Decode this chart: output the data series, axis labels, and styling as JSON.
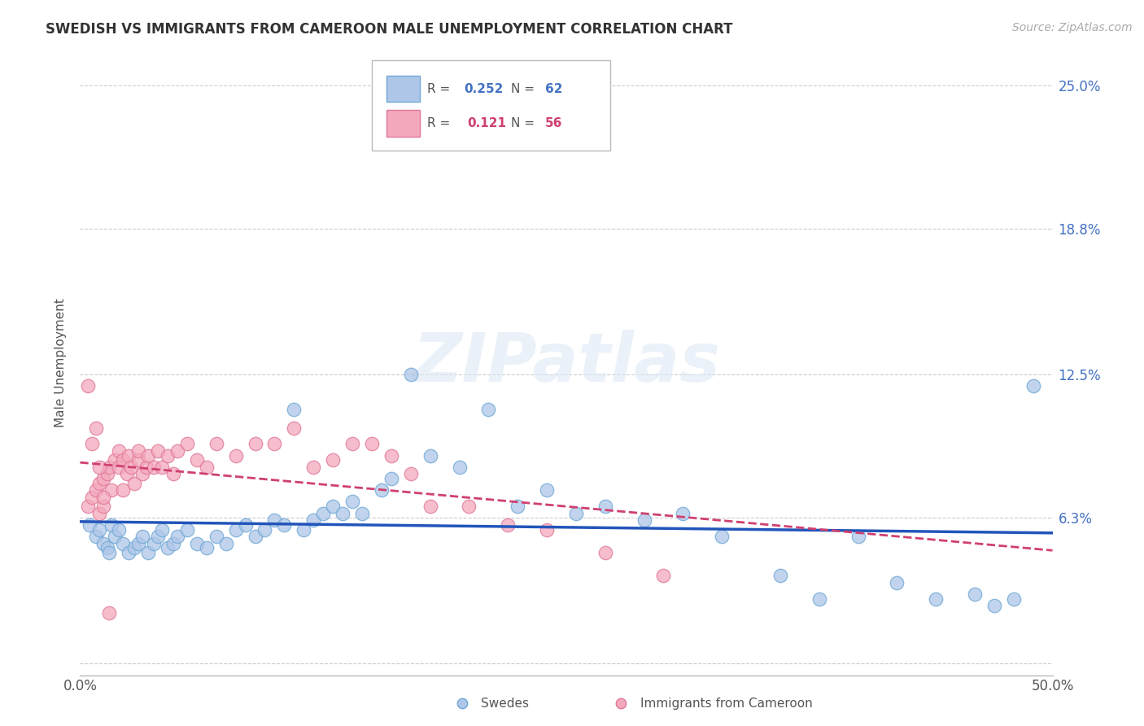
{
  "title": "SWEDISH VS IMMIGRANTS FROM CAMEROON MALE UNEMPLOYMENT CORRELATION CHART",
  "source": "Source: ZipAtlas.com",
  "ylabel": "Male Unemployment",
  "yticks": [
    0.0,
    0.063,
    0.125,
    0.188,
    0.25
  ],
  "ytick_labels": [
    "",
    "6.3%",
    "12.5%",
    "18.8%",
    "25.0%"
  ],
  "xlim": [
    0.0,
    0.5
  ],
  "ylim": [
    -0.005,
    0.265
  ],
  "swedes_color": "#aec6e8",
  "swedes_edge_color": "#6fa8d6",
  "immigrants_color": "#f4a8bc",
  "immigrants_edge_color": "#e07898",
  "trend_swedes_color": "#2255bb",
  "trend_immigrants_color": "#d04070",
  "R_swedes": 0.252,
  "N_swedes": 62,
  "R_immigrants": 0.121,
  "N_immigrants": 56,
  "legend_label_swedes": "Swedes",
  "legend_label_immigrants": "Immigrants from Cameroon",
  "watermark": "ZIPatlas",
  "background_color": "#ffffff",
  "swedes_x": [
    0.005,
    0.008,
    0.01,
    0.012,
    0.014,
    0.015,
    0.016,
    0.018,
    0.02,
    0.022,
    0.025,
    0.028,
    0.03,
    0.032,
    0.035,
    0.038,
    0.04,
    0.042,
    0.045,
    0.048,
    0.05,
    0.055,
    0.06,
    0.065,
    0.07,
    0.075,
    0.08,
    0.085,
    0.09,
    0.095,
    0.1,
    0.105,
    0.11,
    0.115,
    0.12,
    0.125,
    0.13,
    0.135,
    0.14,
    0.145,
    0.155,
    0.16,
    0.17,
    0.18,
    0.195,
    0.21,
    0.225,
    0.24,
    0.255,
    0.27,
    0.29,
    0.31,
    0.33,
    0.36,
    0.38,
    0.4,
    0.42,
    0.44,
    0.46,
    0.47,
    0.48,
    0.49
  ],
  "swedes_y": [
    0.06,
    0.055,
    0.058,
    0.052,
    0.05,
    0.048,
    0.06,
    0.055,
    0.058,
    0.052,
    0.048,
    0.05,
    0.052,
    0.055,
    0.048,
    0.052,
    0.055,
    0.058,
    0.05,
    0.052,
    0.055,
    0.058,
    0.052,
    0.05,
    0.055,
    0.052,
    0.058,
    0.06,
    0.055,
    0.058,
    0.062,
    0.06,
    0.11,
    0.058,
    0.062,
    0.065,
    0.068,
    0.065,
    0.07,
    0.065,
    0.075,
    0.08,
    0.125,
    0.09,
    0.085,
    0.11,
    0.068,
    0.075,
    0.065,
    0.068,
    0.062,
    0.065,
    0.055,
    0.038,
    0.028,
    0.055,
    0.035,
    0.028,
    0.03,
    0.025,
    0.028,
    0.12
  ],
  "immigrants_x": [
    0.004,
    0.006,
    0.008,
    0.01,
    0.01,
    0.012,
    0.012,
    0.014,
    0.015,
    0.016,
    0.018,
    0.02,
    0.02,
    0.022,
    0.022,
    0.024,
    0.025,
    0.026,
    0.028,
    0.03,
    0.03,
    0.032,
    0.034,
    0.035,
    0.038,
    0.04,
    0.042,
    0.045,
    0.048,
    0.05,
    0.055,
    0.06,
    0.065,
    0.07,
    0.08,
    0.09,
    0.1,
    0.11,
    0.12,
    0.13,
    0.14,
    0.15,
    0.16,
    0.17,
    0.18,
    0.2,
    0.22,
    0.24,
    0.27,
    0.3,
    0.004,
    0.006,
    0.008,
    0.01,
    0.012,
    0.015
  ],
  "immigrants_y": [
    0.068,
    0.072,
    0.075,
    0.078,
    0.065,
    0.08,
    0.068,
    0.082,
    0.085,
    0.075,
    0.088,
    0.085,
    0.092,
    0.075,
    0.088,
    0.082,
    0.09,
    0.085,
    0.078,
    0.088,
    0.092,
    0.082,
    0.085,
    0.09,
    0.085,
    0.092,
    0.085,
    0.09,
    0.082,
    0.092,
    0.095,
    0.088,
    0.085,
    0.095,
    0.09,
    0.095,
    0.095,
    0.102,
    0.085,
    0.088,
    0.095,
    0.095,
    0.09,
    0.082,
    0.068,
    0.068,
    0.06,
    0.058,
    0.048,
    0.038,
    0.12,
    0.095,
    0.102,
    0.085,
    0.072,
    0.022
  ]
}
